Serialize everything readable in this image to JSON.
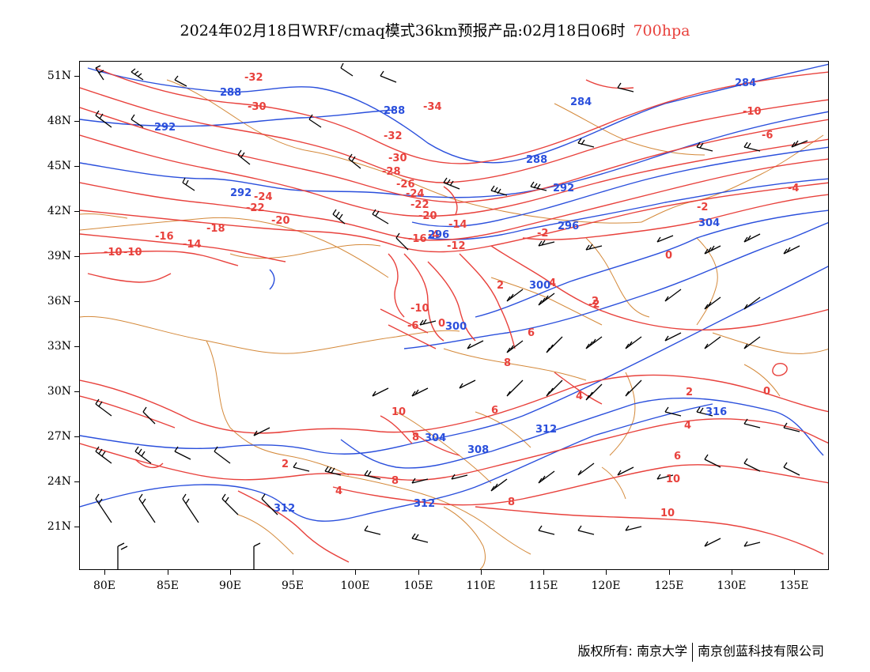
{
  "title": {
    "main": "2024年02月18日WRF/cmaq模式36km预报产品:02月18日06时",
    "level": "700hpa"
  },
  "colors": {
    "temperature": "#e8413c",
    "height": "#2a4fdc",
    "borders": "#d4893a",
    "barbs": "#000000"
  },
  "axes": {
    "lat_labels": [
      "51N",
      "48N",
      "45N",
      "42N",
      "39N",
      "36N",
      "33N",
      "30N",
      "27N",
      "24N",
      "21N"
    ],
    "lon_labels": [
      "80E",
      "85E",
      "90E",
      "95E",
      "100E",
      "105E",
      "110E",
      "115E",
      "120E",
      "125E",
      "130E",
      "135E"
    ]
  },
  "temperature_labels": [
    "-32",
    "-30",
    "-34",
    "-32",
    "-30",
    "-28",
    "-26",
    "-24",
    "-22",
    "-20",
    "-24",
    "-22",
    "-20",
    "-18",
    "-16",
    "-14",
    "-10",
    "-16",
    "-14",
    "-12",
    "-10",
    "-6",
    "-4",
    "-2",
    "0",
    "2",
    "4",
    "-2",
    "-10",
    "0",
    "6",
    "8",
    "10",
    "2",
    "4",
    "6",
    "8",
    "8",
    "10",
    "2",
    "4",
    "6",
    "8",
    "10",
    "0",
    "-2",
    "-4",
    "-6",
    "-10",
    "2",
    "4"
  ],
  "height_labels": [
    "288",
    "292",
    "288",
    "284",
    "284",
    "288",
    "292",
    "292",
    "296",
    "296",
    "304",
    "300",
    "300",
    "304",
    "308",
    "312",
    "312",
    "312",
    "316"
  ],
  "footer": {
    "left": "版权所有: 南京大学",
    "right": "南京创蓝科技有限公司"
  }
}
